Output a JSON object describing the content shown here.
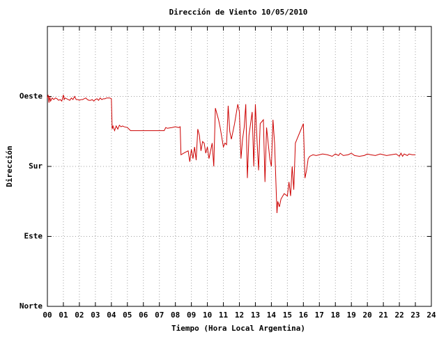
{
  "chart_data": {
    "type": "line",
    "title": "Dirección de Viento 10/05/2010",
    "xlabel": "Tiempo (Hora Local Argentina)",
    "ylabel": "Dirección",
    "color": "#cc0000",
    "grid": true,
    "xlim": [
      0,
      24
    ],
    "ylim": [
      0,
      360
    ],
    "xticks": [
      {
        "value": 0,
        "label": "00"
      },
      {
        "value": 1,
        "label": "01"
      },
      {
        "value": 2,
        "label": "02"
      },
      {
        "value": 3,
        "label": "03"
      },
      {
        "value": 4,
        "label": "04"
      },
      {
        "value": 5,
        "label": "05"
      },
      {
        "value": 6,
        "label": "06"
      },
      {
        "value": 7,
        "label": "07"
      },
      {
        "value": 8,
        "label": "08"
      },
      {
        "value": 9,
        "label": "09"
      },
      10,
      11,
      12,
      13,
      14,
      15,
      16,
      17,
      18,
      19,
      20,
      21,
      22,
      23,
      24
    ],
    "yticks": [
      {
        "value": 0,
        "label": "Norte"
      },
      {
        "value": 90,
        "label": "Este"
      },
      {
        "value": 180,
        "label": "Sur"
      },
      {
        "value": 270,
        "label": "Oeste"
      }
    ],
    "x": [
      0,
      0.05,
      0.1,
      0.15,
      0.2,
      0.3,
      0.4,
      0.5,
      0.6,
      0.7,
      0.8,
      0.9,
      1.0,
      1.05,
      1.1,
      1.2,
      1.3,
      1.4,
      1.5,
      1.6,
      1.7,
      1.8,
      1.9,
      2.0,
      2.1,
      2.2,
      2.3,
      2.4,
      2.5,
      2.6,
      2.7,
      2.8,
      2.9,
      3.0,
      3.1,
      3.2,
      3.3,
      3.4,
      3.5,
      3.6,
      3.7,
      3.8,
      3.9,
      4.0,
      4.05,
      4.1,
      4.2,
      4.3,
      4.4,
      4.5,
      4.6,
      4.7,
      4.8,
      5.0,
      5.2,
      5.5,
      6.0,
      6.5,
      7.0,
      7.3,
      7.4,
      7.5,
      7.8,
      8.0,
      8.2,
      8.3,
      8.35,
      8.6,
      8.8,
      8.9,
      9.0,
      9.1,
      9.2,
      9.3,
      9.4,
      9.5,
      9.6,
      9.7,
      9.8,
      9.9,
      10.0,
      10.1,
      10.2,
      10.3,
      10.4,
      10.5,
      10.7,
      10.8,
      11.0,
      11.1,
      11.2,
      11.3,
      11.4,
      11.5,
      11.7,
      11.9,
      12.0,
      12.1,
      12.2,
      12.3,
      12.4,
      12.5,
      12.6,
      12.7,
      12.8,
      12.9,
      13.0,
      13.1,
      13.2,
      13.3,
      13.5,
      13.6,
      13.7,
      13.8,
      13.9,
      14.0,
      14.1,
      14.2,
      14.25,
      14.35,
      14.4,
      14.5,
      14.6,
      14.8,
      15.0,
      15.1,
      15.2,
      15.3,
      15.4,
      15.5,
      15.6,
      15.8,
      16.0,
      16.1,
      16.2,
      16.3,
      16.4,
      16.6,
      16.8,
      17.0,
      17.2,
      17.5,
      17.8,
      18.0,
      18.2,
      18.3,
      18.5,
      18.8,
      19.0,
      19.2,
      19.5,
      19.8,
      20.0,
      20.2,
      20.5,
      20.8,
      21.0,
      21.2,
      21.5,
      21.8,
      22.0,
      22.1,
      22.2,
      22.3,
      22.5,
      22.6,
      22.8,
      23.0
    ],
    "values": [
      268,
      272,
      262,
      270,
      264,
      268,
      266,
      268,
      267,
      265,
      266,
      264,
      272,
      266,
      268,
      267,
      266,
      265,
      268,
      266,
      270,
      266,
      266,
      265,
      266,
      266,
      267,
      268,
      266,
      265,
      265,
      266,
      264,
      266,
      267,
      265,
      268,
      266,
      267,
      267,
      268,
      268,
      268,
      267,
      228,
      232,
      226,
      232,
      228,
      233,
      231,
      232,
      231,
      230,
      226,
      226,
      226,
      226,
      226,
      226,
      230,
      229,
      230,
      231,
      230,
      231,
      195,
      198,
      200,
      186,
      202,
      190,
      205,
      188,
      228,
      220,
      200,
      212,
      210,
      197,
      205,
      190,
      200,
      210,
      180,
      255,
      240,
      230,
      205,
      210,
      208,
      258,
      225,
      215,
      235,
      260,
      250,
      190,
      215,
      230,
      260,
      165,
      220,
      235,
      250,
      180,
      260,
      215,
      175,
      235,
      240,
      160,
      230,
      210,
      190,
      180,
      240,
      210,
      180,
      120,
      135,
      128,
      138,
      145,
      142,
      160,
      142,
      180,
      150,
      210,
      215,
      225,
      235,
      165,
      175,
      190,
      193,
      195,
      194,
      195,
      196,
      195,
      193,
      196,
      194,
      197,
      194,
      195,
      197,
      194,
      193,
      194,
      196,
      195,
      194,
      196,
      195,
      194,
      195,
      196,
      193,
      197,
      193,
      196,
      194,
      196,
      195,
      195
    ]
  }
}
